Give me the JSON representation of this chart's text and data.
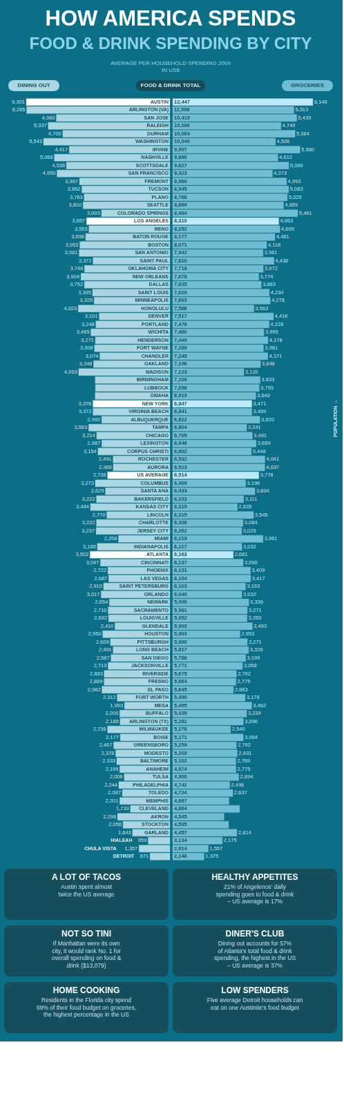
{
  "chart_data": [
    {
      "type": "bar",
      "orientation": "horizontal",
      "title": "HOW AMERICA SPENDS",
      "subtitle": "FOOD & DRINK SPENDING BY CITY",
      "categories": [
        "AUSTIN",
        "ARLINGTON (VA)",
        "SAN JOSE",
        "RALEIGH",
        "DURHAM",
        "WASHINGTON",
        "IRVINE",
        "NASHVILLE",
        "SCOTTSDALE",
        "SAN FRANCISCO",
        "FREMONT",
        "TUCSON",
        "PLANO",
        "SEATTLE",
        "COLORADO SPRINGS",
        "LOS ANGELES",
        "RENO",
        "BATON ROUGE",
        "BOSTON",
        "SAN ANTONIO",
        "SAINT PAUL",
        "OKLAHOMA CITY",
        "NEW ORLEANS",
        "DALLAS",
        "SAINT LOUIS",
        "MINNEAPOLIS",
        "HONOLULU",
        "DENVER",
        "PORTLAND",
        "WICHITA",
        "HENDERSON",
        "FORT WAYNE",
        "CHANDLER",
        "OAKLAND",
        "MADISON",
        "BIRMINGHAM",
        "LUBBOCK",
        "OMAHA",
        "NEW YORK",
        "VIRGINIA BEACH",
        "ALBUQUERQUE",
        "TAMPA",
        "CHICAGO",
        "LEXINGTON",
        "CORPUS CHRISTI",
        "ROCHESTER",
        "AURORA",
        "US AVERAGE",
        "COLUMBUS",
        "SANTA ANA",
        "BAKERSFIELD",
        "KANSAS CITY",
        "LINCOLN",
        "CHARLOTTE",
        "JERSEY CITY",
        "MIAMI",
        "INDIANAPOLIS",
        "ATLANTA",
        "CINCINNATI",
        "PHOENIX",
        "LAS VEGAS",
        "SAINT PETERSBURG",
        "ORLANDO",
        "NEWARK",
        "SACRAMENTO",
        "LOUISVILLE",
        "GLENDALE",
        "HOUSTON",
        "PITTSBURGH",
        "LONG BEACH",
        "SAN DIEGO",
        "JACKSONVILLE",
        "RIVERSIDE",
        "FRESNO",
        "EL PASO",
        "FORT WORTH",
        "MESA",
        "BUFFALO",
        "ARLINGTON (TX)",
        "MILWAUKEE",
        "BOISE",
        "GREENSBORO",
        "MODESTO",
        "BALTIMORE",
        "ANAHEIM",
        "TULSA",
        "PHILADELPHIA",
        "TOLEDO",
        "MEMPHIS",
        "CLEVELAND",
        "AKRON",
        "STOCKTON",
        "GARLAND",
        "HIALEAH",
        "CHULA VISTA",
        "DETROIT"
      ],
      "series": [
        {
          "name": "DINING OUT",
          "color": "#a9d6e0",
          "values": [
            6301,
            6285,
            4980,
            5337,
            4700,
            5543,
            4417,
            5068,
            4538,
            4950,
            3967,
            3862,
            3763,
            3810,
            3003,
            3657,
            3553,
            3696,
            3953,
            3981,
            3372,
            3746,
            3904,
            3752,
            3395,
            3325,
            4023,
            3101,
            3248,
            3465,
            3271,
            3308,
            3074,
            3348,
            4003,
            3276,
            3265,
            3279,
            3376,
            3372,
            2992,
            3563,
            3214,
            2987,
            3154,
            2491,
            2486,
            2736,
            3273,
            2829,
            3222,
            3484,
            2770,
            3222,
            3237,
            2258,
            3185,
            3502,
            3047,
            2722,
            2687,
            2910,
            3017,
            2654,
            2710,
            2692,
            2410,
            2950,
            2609,
            2491,
            2587,
            2713,
            2883,
            2889,
            2982,
            2312,
            1993,
            2200,
            2185,
            2736,
            2177,
            2467,
            2378,
            2333,
            2199,
            2006,
            2244,
            2087,
            2201,
            1733,
            2298,
            2056,
            1643,
            959,
            1357,
            871
          ],
          "value_labels": [
            "6,301",
            "6,285",
            "4,980",
            "5,337",
            "4,700",
            "5,543",
            "4,417",
            "5,068",
            "4,538",
            "4,950",
            "3,967",
            "3,862",
            "3,763",
            "3,810",
            "3,003",
            "3,657",
            "3,553",
            "3,696",
            "3,953",
            "3,981",
            "3,372",
            "3,746",
            "3,904",
            "3,752",
            "3,395",
            "3,325",
            "4,023",
            "3,101",
            "3,248",
            "3,465",
            "3,271",
            "3,308",
            "3,074",
            "3,348",
            "4,003",
            null,
            null,
            null,
            "3,376",
            "3,372",
            "2,992",
            "3,563",
            "3,214",
            "2,987",
            "3,154",
            "2,491",
            "2,486",
            "2,736",
            "3,273",
            "2,829",
            "3,222",
            "3,484",
            "2,770",
            "3,222",
            "3,237",
            "2,258",
            "3,185",
            "3,502",
            "3,047",
            "2,722",
            "2,687",
            "2,910",
            "3,017",
            "2,654",
            "2,710",
            "2,692",
            "2,410",
            "2,950",
            "2,609",
            "2,491",
            "2,587",
            "2,713",
            "2,883",
            "2,889",
            "2,982",
            "2,312",
            "1,993",
            "2,200",
            "2,185",
            "2,736",
            "2,177",
            "2,467",
            "2,378",
            "2,333",
            "2,199",
            "2,006",
            "2,244",
            "2,087",
            "2,201",
            "1,733",
            "2,298",
            "2,056",
            "1,643",
            "959",
            "1,357",
            "871"
          ],
          "colors": [
            "#ffffff",
            "#a9d6e0",
            "#a9d6e0",
            "#a9d6e0",
            "#a9d6e0",
            "#a9d6e0",
            "#a9d6e0",
            "#a9d6e0",
            "#a9d6e0",
            "#a9d6e0",
            "#a9d6e0",
            "#a9d6e0",
            "#a9d6e0",
            "#a9d6e0",
            "#a9d6e0",
            "#ffffff",
            "#a9d6e0",
            "#a9d6e0",
            "#a9d6e0",
            "#a9d6e0",
            "#a9d6e0",
            "#a9d6e0",
            "#a9d6e0",
            "#a9d6e0",
            "#a9d6e0",
            "#a9d6e0",
            "#a9d6e0",
            "#a9d6e0",
            "#a9d6e0",
            "#a9d6e0",
            "#a9d6e0",
            "#a9d6e0",
            "#a9d6e0",
            "#a9d6e0",
            "#a9d6e0",
            "#a9d6e0",
            "#a9d6e0",
            "#a9d6e0",
            "#ffffff",
            "#a9d6e0",
            "#a9d6e0",
            "#a9d6e0",
            "#a9d6e0",
            "#a9d6e0",
            "#a9d6e0",
            "#a9d6e0",
            "#a9d6e0",
            "#ffffff",
            "#a9d6e0",
            "#a9d6e0",
            "#a9d6e0",
            "#a9d6e0",
            "#a9d6e0",
            "#a9d6e0",
            "#a9d6e0",
            "#a9d6e0",
            "#a9d6e0",
            "#ffffff",
            "#a9d6e0",
            "#a9d6e0",
            "#a9d6e0",
            "#a9d6e0",
            "#a9d6e0",
            "#a9d6e0",
            "#a9d6e0",
            "#a9d6e0",
            "#a9d6e0",
            "#a9d6e0",
            "#a9d6e0",
            "#a9d6e0",
            "#a9d6e0",
            "#a9d6e0",
            "#a9d6e0",
            "#a9d6e0",
            "#a9d6e0",
            "#a9d6e0",
            "#a9d6e0",
            "#a9d6e0",
            "#a9d6e0",
            "#a9d6e0",
            "#a9d6e0",
            "#a9d6e0",
            "#a9d6e0",
            "#a9d6e0",
            "#a9d6e0",
            "#a9d6e0",
            "#a9d6e0",
            "#a9d6e0",
            "#a9d6e0",
            "#a9d6e0",
            "#a9d6e0",
            "#a9d6e0",
            "#a9d6e0",
            "#a9d6e0",
            "#a9d6e0",
            "#a9d6e0"
          ]
        }
      ],
      "legend": "top left",
      "annotations": [
        "FOOD & DRINK TOTAL",
        "AVERAGE PER HOUSEHOLD SPENDING 2009\nIN US$",
        "POPULATION →",
        "A LOT OF TACOS\nAustin spent almost\ntwice the US average",
        "HEALTHY APPETITES\n21% of Angelenos' daily\nspending goes to food & drink\n– US average is 17%",
        "NOT SO TINI\nIf Manhattan were its own\ncity, it would rank No. 1 for\noverall spending on food &\ndrink ($13,079)",
        "DINER'S CLUB\nDining out accounts for 57%\nof Atlanta's total food & drink\nspending, the highest in the US\n– US average is 37%",
        "HOME COOKING\nResidents in the Florida city spend\n69% of their food budget on groceries,\nthe highest percentage in the US",
        "LOW SPENDERS\nFive average Detroit households can\neat on one Austinite's food budget"
      ]
    },
    {
      "type": "bar",
      "orientation": "horizontal",
      "tick_labels": false,
      "categories": [
        "AUSTIN",
        "ARLINGTON (VA)",
        "SAN JOSE",
        "RALEIGH",
        "DURHAM",
        "WASHINGTON",
        "IRVINE",
        "NASHVILLE",
        "SCOTTSDALE",
        "SAN FRANCISCO",
        "FREMONT",
        "TUCSON",
        "PLANO",
        "SEATTLE",
        "COLORADO SPRINGS",
        "LOS ANGELES",
        "RENO",
        "BATON ROUGE",
        "BOSTON",
        "SAN ANTONIO",
        "SAINT PAUL",
        "OKLAHOMA CITY",
        "NEW ORLEANS",
        "DALLAS",
        "SAINT LOUIS",
        "MINNEAPOLIS",
        "HONOLULU",
        "DENVER",
        "PORTLAND",
        "WICHITA",
        "HENDERSON",
        "FORT WAYNE",
        "CHANDLER",
        "OAKLAND",
        "MADISON",
        "BIRMINGHAM",
        "LUBBOCK",
        "OMAHA",
        "NEW YORK",
        "VIRGINIA BEACH",
        "ALBUQUERQUE",
        "TAMPA",
        "CHICAGO",
        "LEXINGTON",
        "CORPUS CHRISTI",
        "ROCHESTER",
        "AURORA",
        "US AVERAGE",
        "COLUMBUS",
        "SANTA ANA",
        "BAKERSFIELD",
        "KANSAS CITY",
        "LINCOLN",
        "CHARLOTTE",
        "JERSEY CITY",
        "MIAMI",
        "INDIANAPOLIS",
        "ATLANTA",
        "CINCINNATI",
        "PHOENIX",
        "LAS VEGAS",
        "SAINT PETERSBURG",
        "ORLANDO",
        "NEWARK",
        "SACRAMENTO",
        "LOUISVILLE",
        "GLENDALE",
        "HOUSTON",
        "PITTSBURGH",
        "LONG BEACH",
        "SAN DIEGO",
        "JACKSONVILLE",
        "RIVERSIDE",
        "FRESNO",
        "EL PASO",
        "FORT WORTH",
        "MESA",
        "BUFFALO",
        "ARLINGTON (TX)",
        "MILWAUKEE",
        "BOISE",
        "GREENSBORO",
        "MODESTO",
        "BALTIMORE",
        "ANAHEIM",
        "TULSA",
        "PHILADELPHIA",
        "TOLEDO",
        "MEMPHIS",
        "CLEVELAND",
        "AKRON",
        "STOCKTON",
        "GARLAND",
        "HIALEAH",
        "CHULA VISTA",
        "DETROIT"
      ],
      "series": [
        {
          "name": "GROCERIES",
          "color": "#6fbdd3",
          "values": [
            6146,
            5313,
            5439,
            4749,
            5364,
            4506,
            5580,
            4612,
            5089,
            4373,
            4993,
            5083,
            5025,
            4859,
            5481,
            4653,
            4699,
            4481,
            4118,
            3961,
            4438,
            3972,
            3774,
            3883,
            4234,
            4278,
            3563,
            4416,
            4228,
            3995,
            4178,
            3981,
            4171,
            3848,
            3120,
            3833,
            3793,
            3640,
            3471,
            3469,
            3820,
            3241,
            3491,
            3659,
            3448,
            4041,
            4037,
            3778,
            3196,
            3604,
            3111,
            2835,
            3545,
            3084,
            3025,
            3961,
            3032,
            2661,
            3090,
            3409,
            3417,
            3193,
            3032,
            3336,
            3271,
            3260,
            3493,
            2953,
            3271,
            3326,
            3199,
            3058,
            2792,
            2775,
            2663,
            3178,
            3462,
            3239,
            3096,
            2540,
            3094,
            2792,
            2831,
            2769,
            2775,
            2894,
            2498,
            2637,
            2466,
            2931,
            2247,
            2449,
            2814,
            2175,
            1557,
            1375
          ],
          "value_labels": [
            "6,146",
            "5,313",
            "5,439",
            "4,749",
            "5,364",
            "4,506",
            "5,580",
            "4,612",
            "5,089",
            "4,373",
            "4,993",
            "5,083",
            "5,025",
            "4,859",
            "5,481",
            "4,653",
            "4,699",
            "4,481",
            "4,118",
            "3,961",
            "4,438",
            "3,972",
            "3,774",
            "3,883",
            "4,234",
            "4,278",
            "3,563",
            "4,416",
            "4,228",
            "3,995",
            "4,178",
            "3,981",
            "4,171",
            "3,848",
            "3,120",
            "3,833",
            "3,793",
            "3,640",
            "3,471",
            "3,469",
            "3,820",
            "3,241",
            "3,491",
            "3,659",
            "3,448",
            "4,041",
            "4,037",
            "3,778",
            "3,196",
            "3,604",
            "3,111",
            "2,835",
            "3,545",
            "3,084",
            "3,025",
            "3,961",
            "3,032",
            "2,661",
            "3,090",
            "3,409",
            "3,417",
            "3,193",
            "3,032",
            "3,336",
            "3,271",
            "3,260",
            "3,493",
            "2,953",
            "3,271",
            "3,326",
            "3,199",
            "3,058",
            "2,792",
            "2,775",
            "2,663",
            "3,178",
            "3,462",
            "3,239",
            "3,096",
            "2,540",
            "3,094",
            "2,792",
            "2,831",
            "2,769",
            "2,775",
            "2,894",
            "2,498",
            "2,637",
            null,
            null,
            null,
            null,
            "2,814",
            "2,175",
            "1,557",
            "1,375"
          ],
          "colors": [
            "#bde9f9",
            "#6fbdd3",
            "#6fbdd3",
            "#6fbdd3",
            "#6fbdd3",
            "#6fbdd3",
            "#6fbdd3",
            "#6fbdd3",
            "#6fbdd3",
            "#6fbdd3",
            "#6fbdd3",
            "#6fbdd3",
            "#6fbdd3",
            "#6fbdd3",
            "#6fbdd3",
            "#bde9f9",
            "#6fbdd3",
            "#6fbdd3",
            "#6fbdd3",
            "#6fbdd3",
            "#6fbdd3",
            "#6fbdd3",
            "#6fbdd3",
            "#6fbdd3",
            "#6fbdd3",
            "#6fbdd3",
            "#6fbdd3",
            "#6fbdd3",
            "#6fbdd3",
            "#6fbdd3",
            "#6fbdd3",
            "#6fbdd3",
            "#6fbdd3",
            "#6fbdd3",
            "#6fbdd3",
            "#6fbdd3",
            "#6fbdd3",
            "#6fbdd3",
            "#bde9f9",
            "#6fbdd3",
            "#6fbdd3",
            "#6fbdd3",
            "#6fbdd3",
            "#6fbdd3",
            "#6fbdd3",
            "#6fbdd3",
            "#6fbdd3",
            "#bde9f9",
            "#6fbdd3",
            "#6fbdd3",
            "#6fbdd3",
            "#6fbdd3",
            "#6fbdd3",
            "#6fbdd3",
            "#6fbdd3",
            "#6fbdd3",
            "#6fbdd3",
            "#bde9f9",
            "#6fbdd3",
            "#6fbdd3",
            "#6fbdd3",
            "#6fbdd3",
            "#6fbdd3",
            "#6fbdd3",
            "#6fbdd3",
            "#6fbdd3",
            "#6fbdd3",
            "#6fbdd3",
            "#6fbdd3",
            "#6fbdd3",
            "#6fbdd3",
            "#6fbdd3",
            "#6fbdd3",
            "#6fbdd3",
            "#6fbdd3",
            "#6fbdd3",
            "#6fbdd3",
            "#6fbdd3",
            "#6fbdd3",
            "#6fbdd3",
            "#6fbdd3",
            "#6fbdd3",
            "#6fbdd3",
            "#6fbdd3",
            "#6fbdd3",
            "#6fbdd3",
            "#6fbdd3",
            "#6fbdd3",
            "#6fbdd3",
            "#6fbdd3",
            "#6fbdd3",
            "#6fbdd3",
            "#6fbdd3",
            "#6fbdd3",
            "#6fbdd3",
            "#6fbdd3"
          ]
        }
      ],
      "legend": "top right",
      "annotations": [
        {
          "text": "12,447",
          "y": "AUSTIN"
        },
        {
          "text": "11,598",
          "y": "ARLINGTON (VA)"
        },
        {
          "text": "10,419",
          "y": "SAN JOSE"
        },
        {
          "text": "10,086",
          "y": "RALEIGH"
        },
        {
          "text": "10,064",
          "y": "DURHAM"
        },
        {
          "text": "10,049",
          "y": "WASHINGTON"
        },
        {
          "text": "9,997",
          "y": "IRVINE"
        },
        {
          "text": "9,680",
          "y": "NASHVILLE"
        },
        {
          "text": "9,627",
          "y": "SCOTTSDALE"
        },
        {
          "text": "9,323",
          "y": "SAN FRANCISCO"
        },
        {
          "text": "8,960",
          "y": "FREMONT"
        },
        {
          "text": "8,945",
          "y": "TUCSON"
        },
        {
          "text": "8,788",
          "y": "PLANO"
        },
        {
          "text": "8,669",
          "y": "SEATTLE"
        },
        {
          "text": "8,484",
          "y": "COLORADO SPRINGS"
        },
        {
          "text": "8,310",
          "y": "LOS ANGELES"
        },
        {
          "text": "8,252",
          "y": "RENO"
        },
        {
          "text": "8,177",
          "y": "BATON ROUGE"
        },
        {
          "text": "8,071",
          "y": "BOSTON"
        },
        {
          "text": "7,942",
          "y": "SAN ANTONIO"
        },
        {
          "text": "7,810",
          "y": "SAINT PAUL"
        },
        {
          "text": "7,718",
          "y": "OKLAHOMA CITY"
        },
        {
          "text": "7,678",
          "y": "NEW ORLEANS"
        },
        {
          "text": "7,635",
          "y": "DALLAS"
        },
        {
          "text": "7,629",
          "y": "SAINT LOUIS"
        },
        {
          "text": "7,603",
          "y": "MINNEAPOLIS"
        },
        {
          "text": "7,586",
          "y": "HONOLULU"
        },
        {
          "text": "7,517",
          "y": "DENVER"
        },
        {
          "text": "7,476",
          "y": "PORTLAND"
        },
        {
          "text": "7,460",
          "y": "WICHITA"
        },
        {
          "text": "7,449",
          "y": "HENDERSON"
        },
        {
          "text": "7,289",
          "y": "FORT WAYNE"
        },
        {
          "text": "7,245",
          "y": "CHANDLER"
        },
        {
          "text": "7,196",
          "y": "OAKLAND"
        },
        {
          "text": "7,123",
          "y": "MADISON"
        },
        {
          "text": "7,109",
          "y": "BIRMINGHAM"
        },
        {
          "text": "7,058",
          "y": "LUBBOCK"
        },
        {
          "text": "6,919",
          "y": "OMAHA"
        },
        {
          "text": "6,847",
          "y": "NEW YORK"
        },
        {
          "text": "6,841",
          "y": "VIRGINIA BEACH"
        },
        {
          "text": "6,812",
          "y": "ALBUQUERQUE"
        },
        {
          "text": "6,804",
          "y": "TAMPA"
        },
        {
          "text": "6,705",
          "y": "CHICAGO"
        },
        {
          "text": "6,646",
          "y": "LEXINGTON"
        },
        {
          "text": "6,602",
          "y": "CORPUS CHRISTI"
        },
        {
          "text": "6,532",
          "y": "ROCHESTER"
        },
        {
          "text": "6,523",
          "y": "AURORA"
        },
        {
          "text": "6,514",
          "y": "US AVERAGE"
        },
        {
          "text": "6,469",
          "y": "COLUMBUS"
        },
        {
          "text": "6,433",
          "y": "SANTA ANA"
        },
        {
          "text": "6,333",
          "y": "BAKERSFIELD"
        },
        {
          "text": "6,319",
          "y": "KANSAS CITY"
        },
        {
          "text": "6,315",
          "y": "LINCOLN"
        },
        {
          "text": "6,306",
          "y": "CHARLOTTE"
        },
        {
          "text": "6,262",
          "y": "JERSEY CITY"
        },
        {
          "text": "6,219",
          "y": "MIAMI"
        },
        {
          "text": "6,217",
          "y": "INDIANAPOLIS"
        },
        {
          "text": "6,163",
          "y": "ATLANTA"
        },
        {
          "text": "6,137",
          "y": "CINCINNATI"
        },
        {
          "text": "6,131",
          "y": "PHOENIX"
        },
        {
          "text": "6,104",
          "y": "LAS VEGAS"
        },
        {
          "text": "6,103",
          "y": "SAINT PETERSBURG"
        },
        {
          "text": "6,049",
          "y": "ORLANDO"
        },
        {
          "text": "5,990",
          "y": "NEWARK"
        },
        {
          "text": "5,981",
          "y": "SACRAMENTO"
        },
        {
          "text": "5,952",
          "y": "LOUISVILLE"
        },
        {
          "text": "5,903",
          "y": "GLENDALE"
        },
        {
          "text": "5,903",
          "y": "HOUSTON"
        },
        {
          "text": "5,880",
          "y": "PITTSBURGH"
        },
        {
          "text": "5,817",
          "y": "LONG BEACH"
        },
        {
          "text": "5,786",
          "y": "SAN DIEGO"
        },
        {
          "text": "5,771",
          "y": "JACKSONVILLE"
        },
        {
          "text": "5,675",
          "y": "RIVERSIDE"
        },
        {
          "text": "5,664",
          "y": "FRESNO"
        },
        {
          "text": "5,645",
          "y": "EL PASO"
        },
        {
          "text": "5,490",
          "y": "FORT WORTH"
        },
        {
          "text": "5,455",
          "y": "MESA"
        },
        {
          "text": "5,439",
          "y": "BUFFALO"
        },
        {
          "text": "5,281",
          "y": "ARLINGTON (TX)"
        },
        {
          "text": "5,276",
          "y": "MILWAUKEE"
        },
        {
          "text": "5,271",
          "y": "BOISE"
        },
        {
          "text": "5,259",
          "y": "GREENSBORO"
        },
        {
          "text": "5,209",
          "y": "MODESTO"
        },
        {
          "text": "5,102",
          "y": "BALTIMORE"
        },
        {
          "text": "4,974",
          "y": "ANAHEIM"
        },
        {
          "text": "4,900",
          "y": "TULSA"
        },
        {
          "text": "4,742",
          "y": "PHILADELPHIA"
        },
        {
          "text": "4,724",
          "y": "TOLEDO"
        },
        {
          "text": "4,667",
          "y": "MEMPHIS"
        },
        {
          "text": "4,664",
          "y": "CLEVELAND"
        },
        {
          "text": "4,545",
          "y": "AKRON"
        },
        {
          "text": "4,505",
          "y": "STOCKTON"
        },
        {
          "text": "4,457",
          "y": "GARLAND"
        },
        {
          "text": "3,134",
          "y": "HIALEAH"
        },
        {
          "text": "2,914",
          "y": "CHULA VISTA"
        },
        {
          "text": "2,246",
          "y": "DETROIT"
        }
      ]
    }
  ]
}
